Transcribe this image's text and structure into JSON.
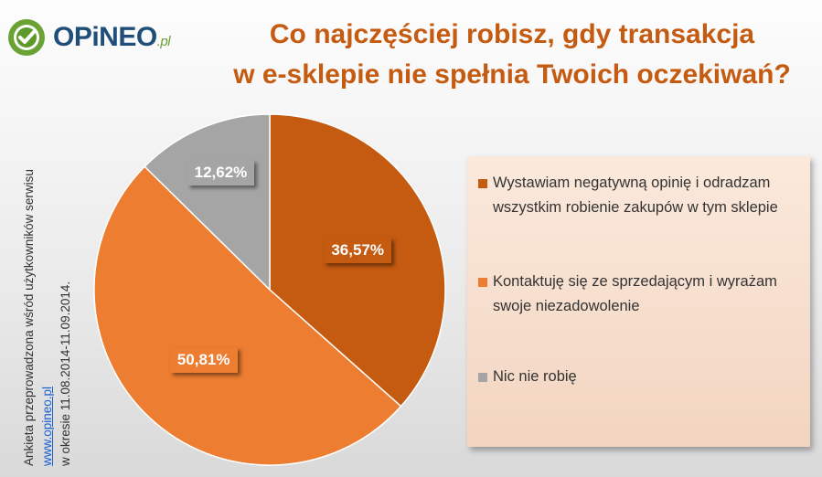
{
  "logo": {
    "name": "OPiNEO",
    "suffix": ".pl"
  },
  "title": {
    "line1": "Co najczęściej robisz, gdy transakcja",
    "line2": "w e-sklepie nie spełnia Twoich oczekiwań?"
  },
  "side_note": {
    "line1": "Ankieta przeprowadzona wśród użytkowników serwisu",
    "link": "www.opineo.pl",
    "line2_rest": " w okresie 11.08.2014-11.09.2014."
  },
  "colors": {
    "title": "#c55a11",
    "slice_dark_orange": "#c55a11",
    "slice_orange": "#ed7d31",
    "slice_gray": "#a5a5a5"
  },
  "chart_data": {
    "type": "pie",
    "slices": [
      {
        "label": "Wystawiam negatywną opinię i odradzam wszystkim robienie zakupów w tym sklepie",
        "value": 36.57,
        "display": "36,57%",
        "color": "#c55a11"
      },
      {
        "label": "Kontaktuję się ze sprzedającym i wyrażam swoje niezadowolenie",
        "value": 50.81,
        "display": "50,81%",
        "color": "#ed7d31"
      },
      {
        "label": "Nic nie robię",
        "value": 12.62,
        "display": "12,62%",
        "color": "#a5a5a5"
      }
    ],
    "legend_position": "right"
  }
}
